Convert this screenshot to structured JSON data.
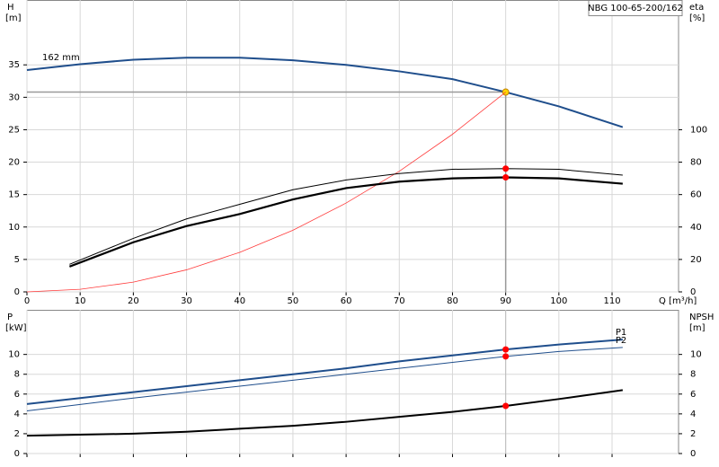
{
  "chart_data": [
    {
      "type": "line",
      "title": "NBG 100-65-200/162",
      "y_label": "H",
      "y_unit": "[m]",
      "y2_label": "eta",
      "y2_unit": "[%]",
      "x_label": "Q [m³/h]",
      "annotation": "162 mm",
      "xlim": [
        0,
        122.5
      ],
      "xticks": [
        0,
        10,
        20,
        30,
        40,
        50,
        60,
        70,
        80,
        90,
        100,
        110
      ],
      "ylim": [
        0,
        45
      ],
      "yticks": [
        0,
        5,
        10,
        15,
        20,
        25,
        30,
        35
      ],
      "y2lim": [
        0,
        180
      ],
      "y2ticks": [
        0,
        20,
        40,
        60,
        80,
        100
      ],
      "grid": true,
      "duty_point": {
        "x": 90,
        "y": 30.8
      },
      "series": [
        {
          "color": "#1f4e8c",
          "width": 2,
          "marker_color": "#ffd700",
          "x": [
            0,
            10,
            20,
            30,
            40,
            50,
            60,
            70,
            80,
            90,
            100,
            112
          ],
          "values": [
            34.2,
            35.1,
            35.8,
            36.1,
            36.1,
            35.7,
            35.0,
            34.0,
            32.8,
            30.8,
            28.6,
            25.4
          ]
        },
        {
          "color": "#ff3b3b",
          "width": 0.8,
          "x": [
            0,
            10,
            20,
            30,
            40,
            50,
            60,
            70,
            80,
            90
          ],
          "values": [
            0,
            0.4,
            1.5,
            3.4,
            6.1,
            9.5,
            13.7,
            18.6,
            24.3,
            30.8
          ]
        },
        {
          "color": "#000000",
          "width": 1,
          "axis": "y2",
          "marker_color": "#ff0000",
          "x": [
            8,
            20,
            30,
            40,
            50,
            60,
            70,
            80,
            90,
            100,
            112
          ],
          "values": [
            17,
            33,
            45,
            54,
            63,
            69,
            73,
            75.6,
            76,
            75.6,
            72
          ]
        },
        {
          "color": "#000000",
          "width": 2.2,
          "axis": "y2",
          "marker_color": "#ff0000",
          "x": [
            8,
            20,
            30,
            40,
            50,
            60,
            70,
            80,
            90,
            100,
            112
          ],
          "values": [
            15.6,
            30.6,
            40.6,
            48,
            57,
            64,
            68,
            70,
            70.6,
            70,
            66.7
          ]
        }
      ]
    },
    {
      "type": "line",
      "y_label": "P",
      "y_unit": "[kW]",
      "y2_label": "NPSH",
      "y2_unit": "[m]",
      "xlim": [
        0,
        122.5
      ],
      "xticks": [
        0,
        10,
        20,
        30,
        40,
        50,
        60,
        70,
        80,
        90,
        100,
        110
      ],
      "ylim": [
        0,
        14.5
      ],
      "yticks": [
        0,
        2,
        4,
        6,
        8,
        10
      ],
      "y2lim": [
        0,
        14.5
      ],
      "y2ticks": [
        0,
        2,
        4,
        6,
        8,
        10
      ],
      "grid": true,
      "duty_point": {
        "x": 90
      },
      "series": [
        {
          "name": "P1",
          "color": "#1f4e8c",
          "width": 2,
          "marker_color": "#ff0000",
          "x": [
            0,
            10,
            20,
            30,
            40,
            50,
            60,
            70,
            80,
            90,
            100,
            112
          ],
          "values": [
            5.0,
            5.6,
            6.2,
            6.8,
            7.4,
            8.0,
            8.6,
            9.3,
            9.9,
            10.5,
            11.0,
            11.5
          ]
        },
        {
          "name": "P2",
          "color": "#1f4e8c",
          "width": 1,
          "marker_color": "#ff0000",
          "x": [
            0,
            10,
            20,
            30,
            40,
            50,
            60,
            70,
            80,
            90,
            100,
            112
          ],
          "values": [
            4.3,
            4.95,
            5.6,
            6.2,
            6.8,
            7.4,
            8.0,
            8.6,
            9.2,
            9.8,
            10.3,
            10.7
          ]
        },
        {
          "color": "#000000",
          "width": 2,
          "axis": "y2",
          "marker_color": "#ff0000",
          "x": [
            0,
            10,
            20,
            30,
            40,
            50,
            60,
            70,
            80,
            90,
            100,
            112
          ],
          "values": [
            1.8,
            1.9,
            2.0,
            2.2,
            2.5,
            2.8,
            3.2,
            3.7,
            4.2,
            4.8,
            5.5,
            6.4
          ]
        }
      ]
    }
  ]
}
